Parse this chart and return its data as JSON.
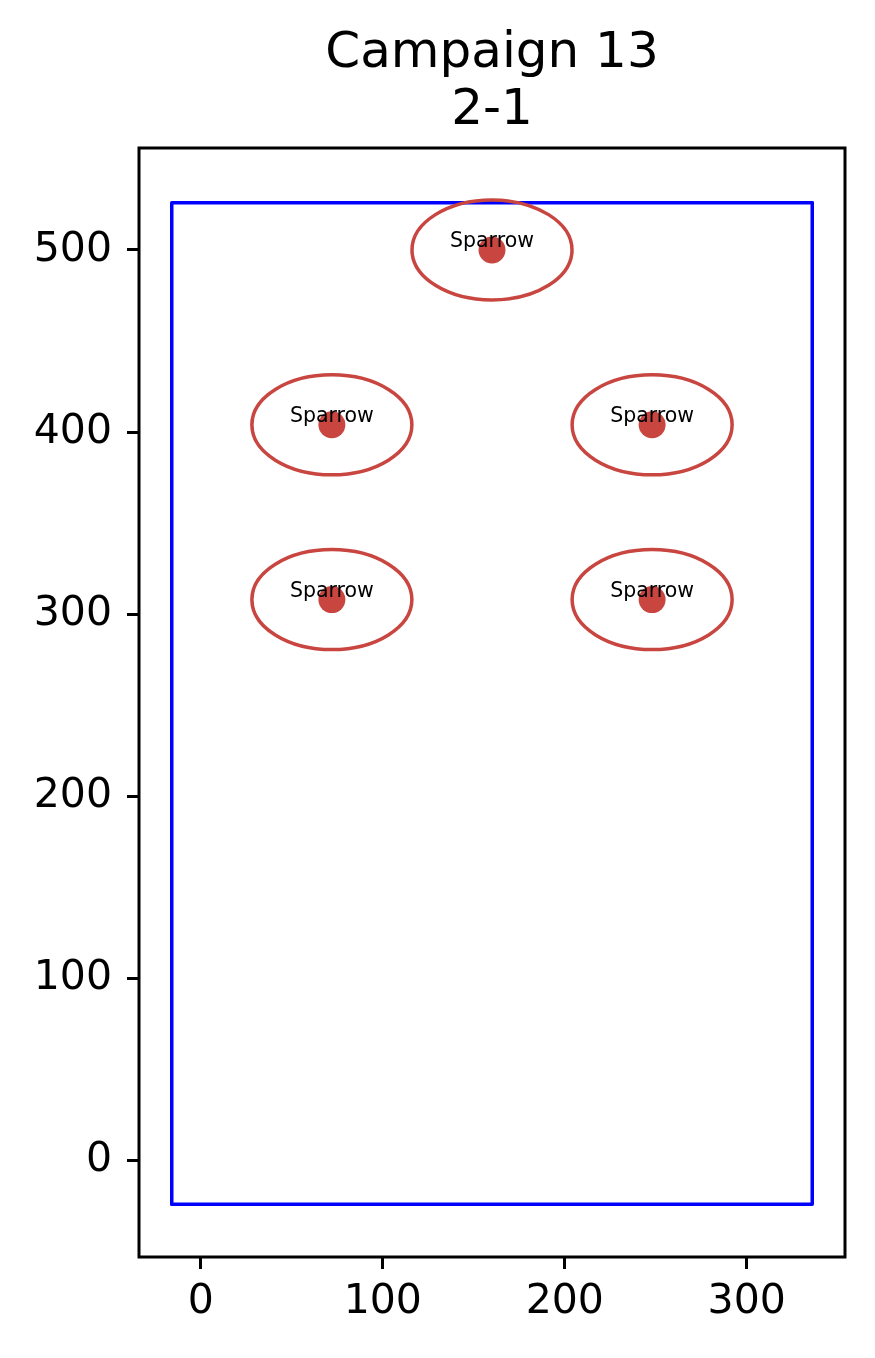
{
  "chart_data": {
    "type": "scatter",
    "title": "Campaign 13",
    "subtitle": "2-1",
    "series": [
      {
        "type": "line",
        "color": "#0000ff",
        "x": [
          -16,
          -16,
          336
        ],
        "values": [
          -24,
          526,
          526
        ],
        "marker": "none",
        "line_style": "solid"
      },
      {
        "type": "line",
        "color": "#0000ff",
        "x": [
          -16,
          336,
          336
        ],
        "values": [
          -24,
          -24,
          526
        ],
        "marker": "none",
        "line_style": "solid"
      },
      {
        "type": "scatter",
        "color": "#c84540",
        "x": [
          72,
          248,
          72,
          248,
          160
        ],
        "values": [
          308,
          308,
          404,
          404,
          500
        ],
        "marker": "circle"
      }
    ],
    "xlim": [
      -34,
      354
    ],
    "ylim": [
      -53,
      556
    ],
    "xticks": [
      0,
      100,
      200,
      300
    ],
    "yticks": [
      0,
      100,
      200,
      300,
      400,
      500
    ],
    "grid": false,
    "annotations": [
      {
        "text": "Sparrow",
        "x": 72,
        "y": 308
      },
      {
        "text": "Sparrow",
        "x": 248,
        "y": 308
      },
      {
        "text": "Sparrow",
        "x": 72,
        "y": 404
      },
      {
        "text": "Sparrow",
        "x": 248,
        "y": 404
      },
      {
        "text": "Sparrow",
        "x": 160,
        "y": 500
      }
    ]
  }
}
